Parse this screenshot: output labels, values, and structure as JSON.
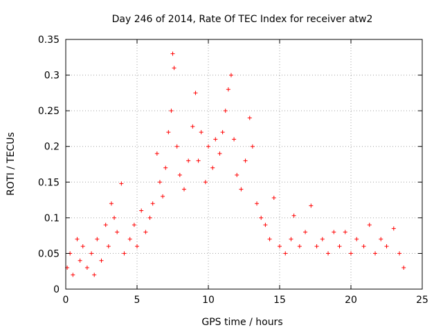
{
  "chart_data": {
    "type": "scatter",
    "title": "Day 246 of 2014, Rate Of TEC Index for receiver atw2",
    "xlabel": "GPS time / hours",
    "ylabel": "ROTI / TECUs",
    "xlim": [
      0,
      25
    ],
    "ylim": [
      0,
      0.35
    ],
    "x_ticks": [
      0,
      5,
      10,
      15,
      20,
      25
    ],
    "y_ticks": [
      0,
      0.05,
      0.1,
      0.15,
      0.2,
      0.25,
      0.3,
      0.35
    ],
    "x_tick_labels": [
      "0",
      "5",
      "10",
      "15",
      "20",
      "25"
    ],
    "y_tick_labels": [
      "0",
      "0.05",
      "0.1",
      "0.15",
      "0.2",
      "0.25",
      "0.3",
      "0.35"
    ],
    "grid": true,
    "marker": "+",
    "color": "#ff0000",
    "series": [
      {
        "points": [
          [
            0.1,
            0.03
          ],
          [
            0.3,
            0.05
          ],
          [
            0.5,
            0.02
          ],
          [
            0.8,
            0.07
          ],
          [
            1.0,
            0.04
          ],
          [
            1.2,
            0.06
          ],
          [
            1.5,
            0.03
          ],
          [
            1.8,
            0.05
          ],
          [
            2.0,
            0.02
          ],
          [
            2.2,
            0.07
          ],
          [
            2.5,
            0.04
          ],
          [
            2.8,
            0.09
          ],
          [
            3.0,
            0.06
          ],
          [
            3.2,
            0.12
          ],
          [
            3.4,
            0.1
          ],
          [
            3.6,
            0.08
          ],
          [
            3.9,
            0.148
          ],
          [
            4.1,
            0.05
          ],
          [
            4.5,
            0.07
          ],
          [
            4.8,
            0.09
          ],
          [
            5.0,
            0.06
          ],
          [
            5.3,
            0.11
          ],
          [
            5.6,
            0.08
          ],
          [
            5.9,
            0.1
          ],
          [
            6.1,
            0.12
          ],
          [
            6.4,
            0.19
          ],
          [
            6.6,
            0.15
          ],
          [
            6.8,
            0.13
          ],
          [
            7.0,
            0.17
          ],
          [
            7.2,
            0.22
          ],
          [
            7.4,
            0.25
          ],
          [
            7.5,
            0.33
          ],
          [
            7.6,
            0.31
          ],
          [
            7.8,
            0.2
          ],
          [
            8.0,
            0.16
          ],
          [
            8.3,
            0.14
          ],
          [
            8.6,
            0.18
          ],
          [
            8.9,
            0.228
          ],
          [
            9.1,
            0.275
          ],
          [
            9.3,
            0.18
          ],
          [
            9.5,
            0.22
          ],
          [
            9.8,
            0.15
          ],
          [
            10.0,
            0.2
          ],
          [
            10.3,
            0.17
          ],
          [
            10.5,
            0.21
          ],
          [
            10.8,
            0.19
          ],
          [
            11.0,
            0.22
          ],
          [
            11.2,
            0.25
          ],
          [
            11.4,
            0.28
          ],
          [
            11.6,
            0.3
          ],
          [
            11.8,
            0.21
          ],
          [
            12.0,
            0.16
          ],
          [
            12.3,
            0.14
          ],
          [
            12.6,
            0.18
          ],
          [
            12.9,
            0.24
          ],
          [
            13.1,
            0.2
          ],
          [
            13.4,
            0.12
          ],
          [
            13.7,
            0.1
          ],
          [
            14.0,
            0.09
          ],
          [
            14.3,
            0.07
          ],
          [
            14.6,
            0.128
          ],
          [
            15.0,
            0.06
          ],
          [
            15.4,
            0.05
          ],
          [
            15.8,
            0.07
          ],
          [
            16.0,
            0.103
          ],
          [
            16.4,
            0.06
          ],
          [
            16.8,
            0.08
          ],
          [
            17.2,
            0.117
          ],
          [
            17.6,
            0.06
          ],
          [
            18.0,
            0.07
          ],
          [
            18.4,
            0.05
          ],
          [
            18.8,
            0.08
          ],
          [
            19.2,
            0.06
          ],
          [
            19.6,
            0.08
          ],
          [
            20.0,
            0.05
          ],
          [
            20.4,
            0.07
          ],
          [
            20.9,
            0.06
          ],
          [
            21.3,
            0.09
          ],
          [
            21.7,
            0.05
          ],
          [
            22.1,
            0.07
          ],
          [
            22.5,
            0.06
          ],
          [
            23.0,
            0.085
          ],
          [
            23.4,
            0.05
          ],
          [
            23.7,
            0.03
          ]
        ]
      }
    ]
  }
}
